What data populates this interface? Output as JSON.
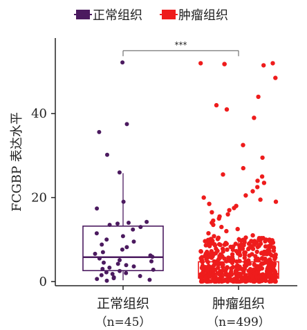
{
  "chart_data": {
    "type": "box",
    "ylabel": "FCGBP 表达水平",
    "ylim": [
      -1,
      58
    ],
    "yticks": [
      0,
      20,
      40
    ],
    "significance": "***",
    "legend_position": "top",
    "groups": [
      {
        "name": "正常组织",
        "label_n": "（n=45）",
        "n": 45,
        "color": "#4b1a5f",
        "box": {
          "q1": 2.6,
          "median": 5.8,
          "q3": 13.2,
          "whisker_low": 0.3,
          "whisker_high": 25.8
        },
        "points": [
          52.2,
          37.5,
          35.6,
          30.2,
          26.0,
          19.0,
          17.4,
          14.2,
          14.0,
          13.8,
          13.5,
          13.0,
          12.4,
          11.5,
          10.8,
          10.0,
          9.5,
          8.8,
          8.2,
          7.6,
          7.0,
          6.6,
          6.2,
          5.9,
          5.5,
          5.1,
          4.8,
          4.5,
          4.2,
          3.9,
          3.6,
          3.3,
          3.0,
          2.8,
          2.5,
          2.2,
          2.0,
          1.8,
          1.5,
          1.3,
          1.0,
          0.8,
          0.6,
          0.4,
          0.2
        ]
      },
      {
        "name": "肿瘤组织",
        "label_n": "（n=499）",
        "n": 499,
        "color": "#ee1c1c",
        "box": {
          "q1": 0.8,
          "median": 1.8,
          "q3": 4.7,
          "whisker_low": 0.0,
          "whisker_high": 10.6
        },
        "outliers": [
          52.0,
          52.0,
          51.8,
          51.8,
          51.5,
          48.5,
          44.0,
          42.0,
          41.0,
          39.0,
          32.5,
          29.5,
          27.0,
          25.5,
          25.0,
          24.0,
          23.5,
          22.5,
          21.5,
          20.5,
          20.0,
          19.5,
          19.0,
          18.5,
          18.0,
          17.5,
          17.0,
          16.5,
          16.0,
          15.5,
          15.0,
          14.5,
          14.0,
          13.5,
          13.0,
          12.5,
          12.0,
          11.5,
          11.0,
          10.8
        ]
      }
    ]
  },
  "colors": {
    "axis": "#222222",
    "bracket": "#555555"
  }
}
